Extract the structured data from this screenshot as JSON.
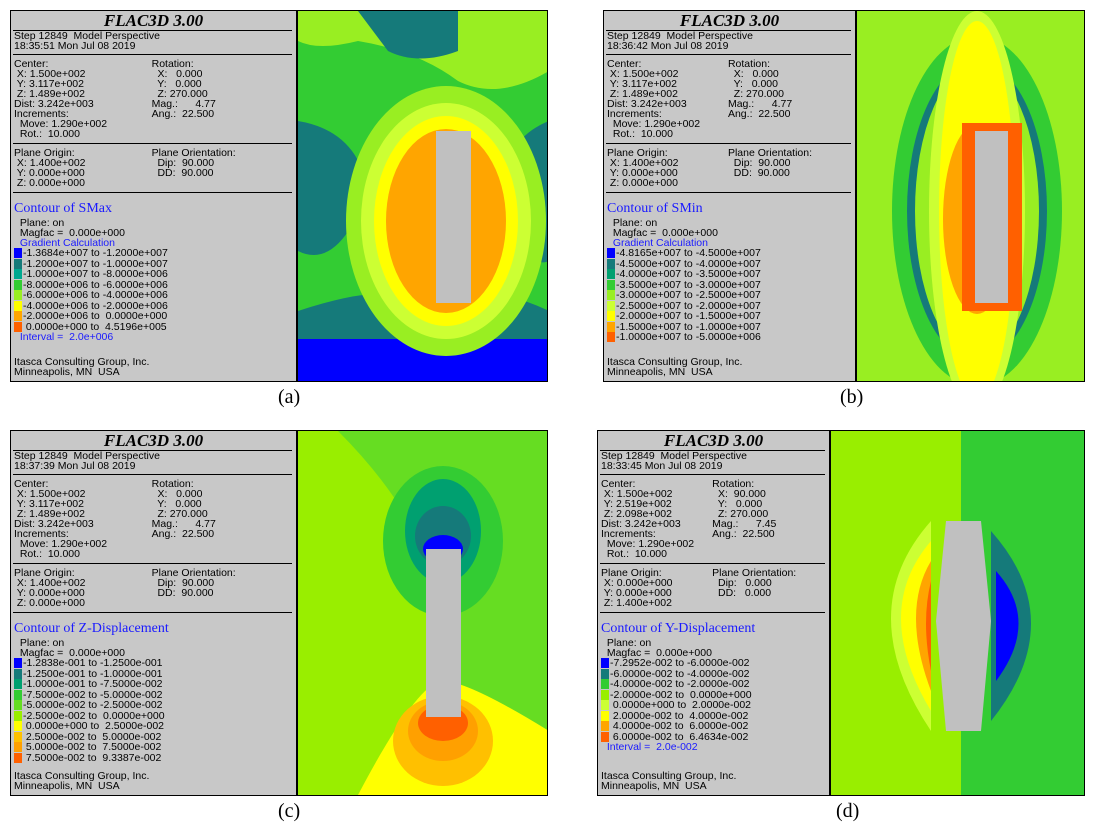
{
  "panels": [
    {
      "title": "FLAC3D 3.00",
      "header": [
        "Step 12849  Model Perspective",
        "18:35:51 Mon Jul 08 2019"
      ],
      "view": {
        "left": [
          "Center:",
          " X: 1.500e+002",
          " Y: 3.117e+002",
          " Z: 1.489e+002",
          "Dist: 3.242e+003",
          "Increments:",
          "  Move: 1.290e+002",
          "  Rot.:  10.000"
        ],
        "right": [
          "Rotation:",
          "  X:   0.000",
          "  Y:   0.000",
          "  Z: 270.000",
          "Mag.:      4.77",
          "Ang.:  22.500"
        ]
      },
      "plane": {
        "left": [
          "Plane Origin:",
          " X: 1.400e+002",
          " Y: 0.000e+000",
          " Z: 0.000e+000"
        ],
        "right": [
          "Plane Orientation:",
          "  Dip:  90.000",
          "  DD:  90.000"
        ]
      },
      "contour": {
        "title": "Contour of SMax",
        "plane": "  Plane: on",
        "magfac": "  Magfac =  0.000e+000",
        "gradient": "  Gradient Calculation",
        "legend": [
          {
            "label": "-1.3684e+007 to -1.2000e+007",
            "color": "#0000ff"
          },
          {
            "label": "-1.2000e+007 to -1.0000e+007",
            "color": "#157a7a"
          },
          {
            "label": "-1.0000e+007 to -8.0000e+006",
            "color": "#00a890"
          },
          {
            "label": "-8.0000e+006 to -6.0000e+006",
            "color": "#33cc33"
          },
          {
            "label": "-6.0000e+006 to -4.0000e+006",
            "color": "#99ee22"
          },
          {
            "label": "-4.0000e+006 to -2.0000e+006",
            "color": "#ffff00"
          },
          {
            "label": "-2.0000e+006 to  0.0000e+000",
            "color": "#ffa500"
          },
          {
            "label": " 0.0000e+000 to  4.5196e+005",
            "color": "#ff6000"
          }
        ],
        "interval": "  Interval =  2.0e+006"
      },
      "footer": [
        "Itasca Consulting Group, Inc.",
        "Minneapolis, MN  USA"
      ],
      "caption": "(a)"
    },
    {
      "title": "FLAC3D 3.00",
      "header": [
        "Step 12849  Model Perspective",
        "18:36:42 Mon Jul 08 2019"
      ],
      "view": {
        "left": [
          "Center:",
          " X: 1.500e+002",
          " Y: 3.117e+002",
          " Z: 1.489e+002",
          "Dist: 3.242e+003",
          "Increments:",
          "  Move: 1.290e+002",
          "  Rot.:  10.000"
        ],
        "right": [
          "Rotation:",
          "  X:   0.000",
          "  Y:   0.000",
          "  Z: 270.000",
          "Mag.:      4.77",
          "Ang.:  22.500"
        ]
      },
      "plane": {
        "left": [
          "Plane Origin:",
          " X: 1.400e+002",
          " Y: 0.000e+000",
          " Z: 0.000e+000"
        ],
        "right": [
          "Plane Orientation:",
          "  Dip:  90.000",
          "  DD:  90.000"
        ]
      },
      "contour": {
        "title": "Contour of SMin",
        "plane": "  Plane: on",
        "magfac": "  Magfac =  0.000e+000",
        "gradient": "  Gradient Calculation",
        "legend": [
          {
            "label": "-4.8165e+007 to -4.5000e+007",
            "color": "#0000ff"
          },
          {
            "label": "-4.5000e+007 to -4.0000e+007",
            "color": "#157a7a"
          },
          {
            "label": "-4.0000e+007 to -3.5000e+007",
            "color": "#00a070"
          },
          {
            "label": "-3.5000e+007 to -3.0000e+007",
            "color": "#33cc33"
          },
          {
            "label": "-3.0000e+007 to -2.5000e+007",
            "color": "#99ee22"
          },
          {
            "label": "-2.5000e+007 to -2.0000e+007",
            "color": "#ccff33"
          },
          {
            "label": "-2.0000e+007 to -1.5000e+007",
            "color": "#ffff00"
          },
          {
            "label": "-1.5000e+007 to -1.0000e+007",
            "color": "#ffa500"
          },
          {
            "label": "-1.0000e+007 to -5.0000e+006",
            "color": "#ff6000"
          }
        ]
      },
      "footer": [
        "Itasca Consulting Group, Inc.",
        "Minneapolis, MN  USA"
      ],
      "caption": "(b)"
    },
    {
      "title": "FLAC3D 3.00",
      "header": [
        "Step 12849  Model Perspective",
        "18:37:39 Mon Jul 08 2019"
      ],
      "view": {
        "left": [
          "Center:",
          " X: 1.500e+002",
          " Y: 3.117e+002",
          " Z: 1.489e+002",
          "Dist: 3.242e+003",
          "Increments:",
          "  Move: 1.290e+002",
          "  Rot.:  10.000"
        ],
        "right": [
          "Rotation:",
          "  X:   0.000",
          "  Y:   0.000",
          "  Z: 270.000",
          "Mag.:      4.77",
          "Ang.:  22.500"
        ]
      },
      "plane": {
        "left": [
          "Plane Origin:",
          " X: 1.400e+002",
          " Y: 0.000e+000",
          " Z: 0.000e+000"
        ],
        "right": [
          "Plane Orientation:",
          "  Dip:  90.000",
          "  DD:  90.000"
        ]
      },
      "contour": {
        "title": "Contour of Z-Displacement",
        "plane": "  Plane: on",
        "magfac": "  Magfac =  0.000e+000",
        "legend": [
          {
            "label": "-1.2838e-001 to -1.2500e-001",
            "color": "#0000ff"
          },
          {
            "label": "-1.2500e-001 to -1.0000e-001",
            "color": "#157a7a"
          },
          {
            "label": "-1.0000e-001 to -7.5000e-002",
            "color": "#00a070"
          },
          {
            "label": "-7.5000e-002 to -5.0000e-002",
            "color": "#33cc33"
          },
          {
            "label": "-5.0000e-002 to -2.5000e-002",
            "color": "#66dd22"
          },
          {
            "label": "-2.5000e-002 to  0.0000e+000",
            "color": "#99ee00"
          },
          {
            "label": " 0.0000e+000 to  2.5000e-002",
            "color": "#ffff00"
          },
          {
            "label": " 2.5000e-002 to  5.0000e-002",
            "color": "#ffc000"
          },
          {
            "label": " 5.0000e-002 to  7.5000e-002",
            "color": "#ffa000"
          },
          {
            "label": " 7.5000e-002 to  9.3387e-002",
            "color": "#ff6000"
          }
        ]
      },
      "footer": [
        "Itasca Consulting Group, Inc.",
        "Minneapolis, MN  USA"
      ],
      "caption": "(c)"
    },
    {
      "title": "FLAC3D 3.00",
      "header": [
        "Step 12849  Model Perspective",
        "18:33:45 Mon Jul 08 2019"
      ],
      "view": {
        "left": [
          "Center:",
          " X: 1.500e+002",
          " Y: 2.519e+002",
          " Z: 2.098e+002",
          "Dist: 3.242e+003",
          "Increments:",
          "  Move: 1.290e+002",
          "  Rot.:  10.000"
        ],
        "right": [
          "Rotation:",
          "  X:  90.000",
          "  Y:   0.000",
          "  Z: 270.000",
          "Mag.:      7.45",
          "Ang.:  22.500"
        ]
      },
      "plane": {
        "left": [
          "Plane Origin:",
          " X: 0.000e+000",
          " Y: 0.000e+000",
          " Z: 1.400e+002"
        ],
        "right": [
          "Plane Orientation:",
          "  Dip:   0.000",
          "  DD:   0.000"
        ]
      },
      "contour": {
        "title": "Contour of Y-Displacement",
        "plane": "  Plane: on",
        "magfac": "  Magfac =  0.000e+000",
        "legend": [
          {
            "label": "-7.2952e-002 to -6.0000e-002",
            "color": "#0000ff"
          },
          {
            "label": "-6.0000e-002 to -4.0000e-002",
            "color": "#157a7a"
          },
          {
            "label": "-4.0000e-002 to -2.0000e-002",
            "color": "#33cc33"
          },
          {
            "label": "-2.0000e-002 to  0.0000e+000",
            "color": "#99ee00"
          },
          {
            "label": " 0.0000e+000 to  2.0000e-002",
            "color": "#ccff33"
          },
          {
            "label": " 2.0000e-002 to  4.0000e-002",
            "color": "#ffff00"
          },
          {
            "label": " 4.0000e-002 to  6.0000e-002",
            "color": "#ffa500"
          },
          {
            "label": " 6.0000e-002 to  6.4634e-002",
            "color": "#ff6000"
          }
        ],
        "interval": "  Interval =  2.0e-002"
      },
      "footer": [
        "Itasca Consulting Group, Inc.",
        "Minneapolis, MN  USA"
      ],
      "caption": "(d)"
    }
  ]
}
